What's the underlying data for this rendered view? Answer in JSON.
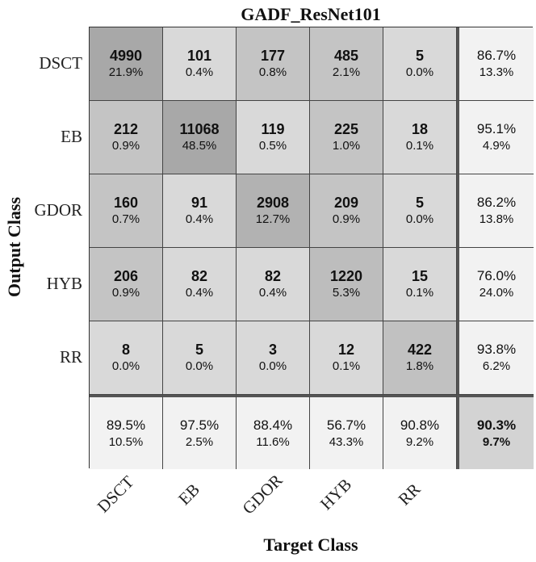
{
  "chart_data": {
    "type": "heatmap",
    "title": "GADF_ResNet101",
    "xlabel": "Target Class",
    "ylabel": "Output Class",
    "target_classes": [
      "DSCT",
      "EB",
      "GDOR",
      "HYB",
      "RR"
    ],
    "output_classes": [
      "DSCT",
      "EB",
      "GDOR",
      "HYB",
      "RR"
    ],
    "counts": [
      [
        4990,
        101,
        177,
        485,
        5
      ],
      [
        212,
        11068,
        119,
        225,
        18
      ],
      [
        160,
        91,
        2908,
        209,
        5
      ],
      [
        206,
        82,
        82,
        1220,
        15
      ],
      [
        8,
        5,
        3,
        12,
        422
      ]
    ],
    "percents": [
      [
        "21.9%",
        "0.4%",
        "0.8%",
        "2.1%",
        "0.0%"
      ],
      [
        "0.9%",
        "48.5%",
        "0.5%",
        "1.0%",
        "0.1%"
      ],
      [
        "0.7%",
        "0.4%",
        "12.7%",
        "0.9%",
        "0.0%"
      ],
      [
        "0.9%",
        "0.4%",
        "0.4%",
        "5.3%",
        "0.1%"
      ],
      [
        "0.0%",
        "0.0%",
        "0.0%",
        "0.1%",
        "1.8%"
      ]
    ],
    "row_summary": [
      [
        "86.7%",
        "13.3%"
      ],
      [
        "95.1%",
        "4.9%"
      ],
      [
        "86.2%",
        "13.8%"
      ],
      [
        "76.0%",
        "24.0%"
      ],
      [
        "93.8%",
        "6.2%"
      ]
    ],
    "col_summary": [
      [
        "89.5%",
        "10.5%"
      ],
      [
        "97.5%",
        "2.5%"
      ],
      [
        "88.4%",
        "11.6%"
      ],
      [
        "56.7%",
        "43.3%"
      ],
      [
        "90.8%",
        "9.2%"
      ]
    ],
    "overall": [
      "90.3%",
      "9.7%"
    ],
    "colors": {
      "cell_light": "#d9d9d9",
      "cell_mid": "#c4c4c4",
      "cell_diag": "#adadad",
      "summary_bg": "#f2f2f2",
      "overall_bg": "#d3d3d3"
    }
  }
}
